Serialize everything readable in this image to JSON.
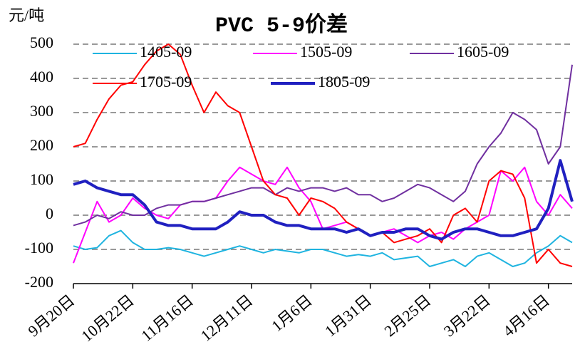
{
  "chart_data": {
    "type": "line",
    "title": "PVC 5-9价差",
    "y_label": "元/吨",
    "categories": [
      "9月20日",
      null,
      null,
      null,
      null,
      "10月22日",
      null,
      null,
      null,
      null,
      "11月16日",
      null,
      null,
      null,
      null,
      "12月11日",
      null,
      null,
      null,
      null,
      "1月6日",
      null,
      null,
      null,
      null,
      "1月31日",
      null,
      null,
      null,
      null,
      "2月25日",
      null,
      null,
      null,
      null,
      "3月22日",
      null,
      null,
      null,
      null,
      "4月16日",
      null,
      null
    ],
    "series": [
      {
        "name": "1405-09",
        "color": "#1fb4e0",
        "values": [
          -90,
          -100,
          -95,
          -60,
          -45,
          -80,
          -100,
          -100,
          -95,
          -100,
          -110,
          -120,
          -110,
          -100,
          -90,
          -100,
          -110,
          -100,
          -105,
          -110,
          -100,
          -100,
          -110,
          -120,
          -115,
          -120,
          -110,
          -130,
          -125,
          -120,
          -150,
          -140,
          -130,
          -150,
          -120,
          -110,
          -130,
          -150,
          -140,
          -110,
          -90,
          -60,
          -80
        ]
      },
      {
        "name": "1505-09",
        "color": "#ff00ff",
        "values": [
          -140,
          -50,
          40,
          -20,
          0,
          50,
          20,
          0,
          -10,
          30,
          40,
          40,
          50,
          100,
          140,
          120,
          100,
          90,
          140,
          80,
          40,
          -40,
          -30,
          -20,
          -40,
          -60,
          -50,
          -40,
          -60,
          -80,
          -60,
          -50,
          -70,
          -40,
          -20,
          0,
          130,
          100,
          140,
          40,
          0,
          60,
          20
        ]
      },
      {
        "name": "1605-09",
        "color": "#7030a0",
        "values": [
          -30,
          -20,
          0,
          -10,
          10,
          0,
          0,
          20,
          30,
          30,
          40,
          40,
          50,
          60,
          70,
          80,
          80,
          60,
          80,
          70,
          80,
          80,
          70,
          80,
          60,
          60,
          40,
          50,
          70,
          90,
          80,
          60,
          40,
          70,
          150,
          200,
          240,
          300,
          280,
          250,
          150,
          200,
          440
        ]
      },
      {
        "name": "1705-09",
        "color": "#ff0000",
        "values": [
          200,
          210,
          280,
          340,
          380,
          390,
          440,
          480,
          500,
          470,
          380,
          300,
          360,
          320,
          300,
          200,
          100,
          60,
          50,
          0,
          50,
          40,
          20,
          -20,
          -40,
          -60,
          -50,
          -80,
          -70,
          -60,
          -40,
          -80,
          0,
          20,
          -20,
          100,
          130,
          120,
          50,
          -140,
          -100,
          -140,
          -150
        ]
      },
      {
        "name": "1805-09",
        "color": "#2020c0",
        "values": [
          90,
          100,
          80,
          70,
          60,
          60,
          30,
          -20,
          -30,
          -30,
          -40,
          -40,
          -40,
          -20,
          10,
          0,
          0,
          -20,
          -30,
          -30,
          -40,
          -40,
          -40,
          -50,
          -40,
          -60,
          -50,
          -50,
          -40,
          -40,
          -60,
          -70,
          -50,
          -40,
          -40,
          -50,
          -60,
          -60,
          -50,
          -40,
          20,
          160,
          40
        ]
      }
    ],
    "ylim": [
      -200,
      500
    ],
    "yticks": [
      -200,
      -100,
      0,
      100,
      200,
      300,
      400,
      500
    ],
    "grid": true
  }
}
